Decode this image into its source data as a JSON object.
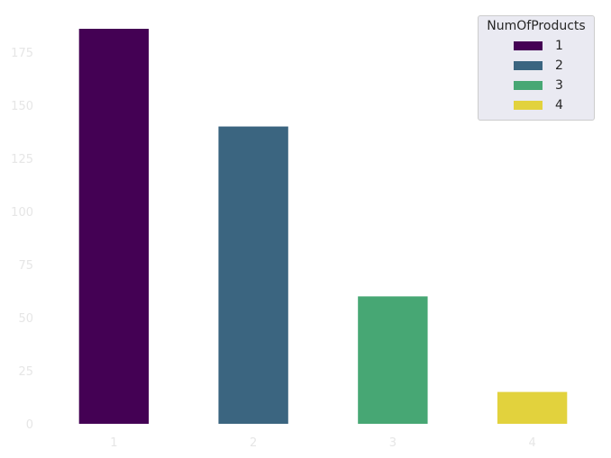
{
  "chart_data": {
    "type": "bar",
    "categories": [
      "1",
      "2",
      "3",
      "4"
    ],
    "values": [
      186,
      140,
      60,
      15
    ],
    "colors": [
      "#440154",
      "#3b6580",
      "#47a774",
      "#e2d23d"
    ],
    "ylim": [
      0,
      186
    ],
    "yticks": [
      0,
      25,
      50,
      75,
      100,
      125,
      150,
      175
    ],
    "grid": false,
    "legend": {
      "title": "NumOfProducts",
      "placement": "top-right",
      "entries": [
        "1",
        "2",
        "3",
        "4"
      ]
    }
  }
}
